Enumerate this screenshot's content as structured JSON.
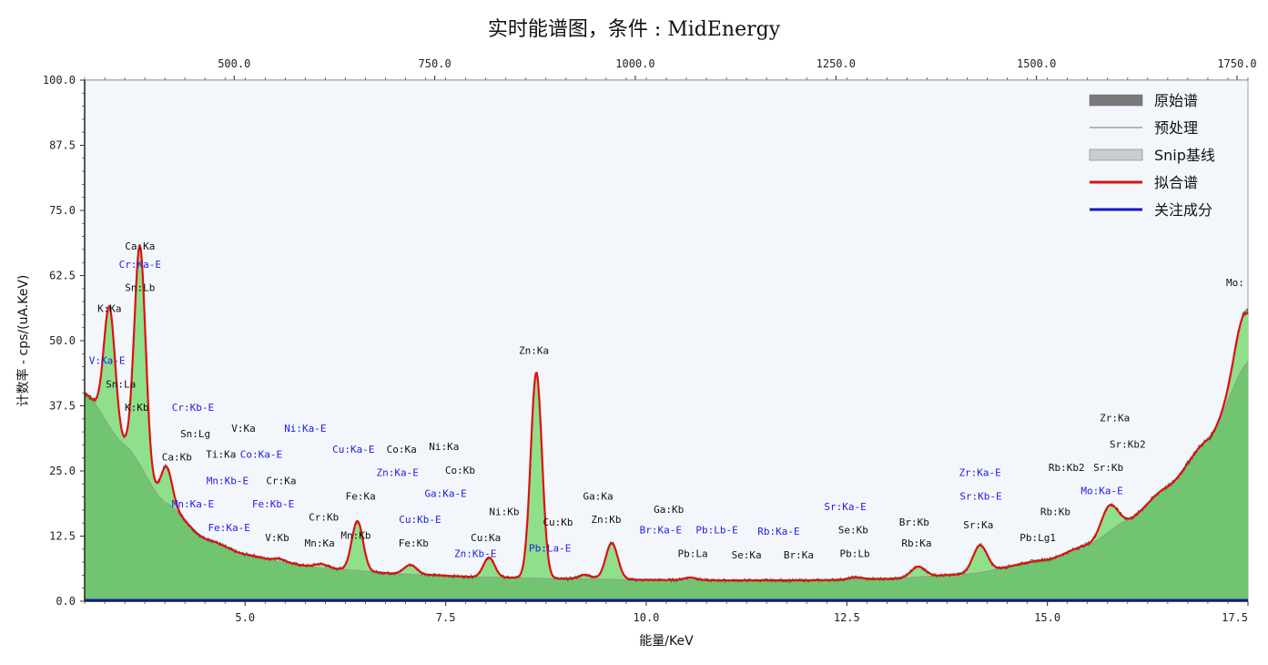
{
  "chart_data": {
    "type": "area",
    "title": "实时能谱图，条件 : MidEnergy",
    "xlabel": "能量/KeV",
    "ylabel": "计数率 - cps/(uA.KeV)",
    "xlim": [
      3.0,
      17.5
    ],
    "ylim": [
      0.0,
      100.0
    ],
    "x_ticks": [
      "5.0",
      "7.5",
      "10.0",
      "12.5",
      "15.0",
      "17.5"
    ],
    "x_tick_values": [
      5.0,
      7.5,
      10.0,
      12.5,
      15.0,
      17.5
    ],
    "y_ticks": [
      "0.0",
      "12.5",
      "25.0",
      "37.5",
      "50.0",
      "62.5",
      "75.0",
      "87.5",
      "100.0"
    ],
    "y_tick_values": [
      0,
      12.5,
      25,
      37.5,
      50,
      62.5,
      75,
      87.5,
      100
    ],
    "top_ticks": [
      "500.0",
      "750.0",
      "1000.0",
      "1250.0",
      "1500.0",
      "1750.0"
    ],
    "top_tick_values": [
      5.0,
      7.5,
      10.0,
      12.5,
      15.0,
      17.5
    ],
    "legend": [
      {
        "name": "原始谱",
        "color": "#7a7a7a",
        "style": "box"
      },
      {
        "name": "预处理",
        "color": "#9aa0a6",
        "style": "thin-line"
      },
      {
        "name": "Snip基线",
        "color": "#c9cdd2",
        "style": "box"
      },
      {
        "name": "拟合谱",
        "color": "#e01010",
        "style": "line"
      },
      {
        "name": "关注成分",
        "color": "#1414c8",
        "style": "line"
      }
    ],
    "background": {
      "x": [
        3.0,
        3.5,
        4.0,
        4.5,
        5.0,
        5.5,
        6.0,
        7.0,
        8.0,
        9.0,
        10.0,
        11.0,
        12.0,
        13.0,
        14.0,
        15.0,
        15.5,
        16.0,
        16.5,
        17.0,
        17.5
      ],
      "y": [
        40.0,
        30.0,
        19.0,
        12.0,
        9.0,
        7.3,
        6.3,
        5.2,
        4.6,
        4.3,
        4.1,
        4.0,
        4.0,
        4.3,
        5.2,
        8.0,
        10.8,
        15.5,
        22.0,
        31.0,
        46.0
      ]
    },
    "peaks": [
      {
        "center": 3.31,
        "height": 23.0,
        "width": 0.07
      },
      {
        "center": 3.69,
        "height": 42.0,
        "width": 0.07
      },
      {
        "center": 4.02,
        "height": 7.0,
        "width": 0.07
      },
      {
        "center": 5.43,
        "height": 0.7,
        "width": 0.08
      },
      {
        "center": 5.95,
        "height": 0.8,
        "width": 0.08
      },
      {
        "center": 6.4,
        "height": 9.5,
        "width": 0.07
      },
      {
        "center": 7.06,
        "height": 1.8,
        "width": 0.08
      },
      {
        "center": 8.04,
        "height": 3.8,
        "width": 0.07
      },
      {
        "center": 8.63,
        "height": 39.5,
        "width": 0.07
      },
      {
        "center": 9.24,
        "height": 0.8,
        "width": 0.08
      },
      {
        "center": 9.57,
        "height": 7.0,
        "width": 0.075
      },
      {
        "center": 10.55,
        "height": 0.5,
        "width": 0.08
      },
      {
        "center": 12.61,
        "height": 0.4,
        "width": 0.08
      },
      {
        "center": 13.39,
        "height": 2.0,
        "width": 0.09
      },
      {
        "center": 14.16,
        "height": 5.2,
        "width": 0.09
      },
      {
        "center": 15.77,
        "height": 5.0,
        "width": 0.1
      },
      {
        "center": 17.45,
        "height": 10.0,
        "width": 0.12
      }
    ],
    "annotations": [
      {
        "text": "Ca:Ka",
        "x": 3.69,
        "y": 67.5,
        "color": "black"
      },
      {
        "text": "Cr:Ka-E",
        "x": 3.69,
        "y": 64.0,
        "color": "blue"
      },
      {
        "text": "Sn:Lb",
        "x": 3.69,
        "y": 59.5,
        "color": "black"
      },
      {
        "text": "K:Ka",
        "x": 3.31,
        "y": 55.5,
        "color": "black"
      },
      {
        "text": "V:Ka-E",
        "x": 3.28,
        "y": 45.5,
        "color": "blue"
      },
      {
        "text": "Sn:La",
        "x": 3.45,
        "y": 41.0,
        "color": "black"
      },
      {
        "text": "K:Kb",
        "x": 3.65,
        "y": 36.5,
        "color": "black"
      },
      {
        "text": "Cr:Kb-E",
        "x": 4.35,
        "y": 36.5,
        "color": "blue"
      },
      {
        "text": "Ca:Kb",
        "x": 4.15,
        "y": 27.0,
        "color": "black"
      },
      {
        "text": "Sn:Lg",
        "x": 4.38,
        "y": 31.5,
        "color": "black"
      },
      {
        "text": "Ti:Ka",
        "x": 4.7,
        "y": 27.5,
        "color": "black"
      },
      {
        "text": "V:Ka",
        "x": 4.98,
        "y": 32.5,
        "color": "black"
      },
      {
        "text": "Ni:Ka-E",
        "x": 5.75,
        "y": 32.5,
        "color": "blue"
      },
      {
        "text": "Co:Ka-E",
        "x": 5.2,
        "y": 27.5,
        "color": "blue"
      },
      {
        "text": "Mn:Kb-E",
        "x": 4.78,
        "y": 22.5,
        "color": "blue"
      },
      {
        "text": "Cr:Ka",
        "x": 5.45,
        "y": 22.5,
        "color": "black"
      },
      {
        "text": "Mn:Ka-E",
        "x": 4.35,
        "y": 18.0,
        "color": "blue"
      },
      {
        "text": "Fe:Kb-E",
        "x": 5.35,
        "y": 18.0,
        "color": "blue"
      },
      {
        "text": "Fe:Ka-E",
        "x": 4.8,
        "y": 13.5,
        "color": "blue"
      },
      {
        "text": "Cu:Ka-E",
        "x": 6.35,
        "y": 28.5,
        "color": "blue"
      },
      {
        "text": "Co:Ka",
        "x": 6.95,
        "y": 28.5,
        "color": "black"
      },
      {
        "text": "Ni:Ka",
        "x": 7.48,
        "y": 29.0,
        "color": "black"
      },
      {
        "text": "Zn:Ka-E",
        "x": 6.9,
        "y": 24.0,
        "color": "blue"
      },
      {
        "text": "Co:Kb",
        "x": 7.68,
        "y": 24.5,
        "color": "black"
      },
      {
        "text": "Ga:Ka-E",
        "x": 7.5,
        "y": 20.0,
        "color": "blue"
      },
      {
        "text": "Fe:Ka",
        "x": 6.44,
        "y": 19.5,
        "color": "black"
      },
      {
        "text": "Cr:Kb",
        "x": 5.98,
        "y": 15.5,
        "color": "black"
      },
      {
        "text": "Cu:Kb-E",
        "x": 7.18,
        "y": 15.0,
        "color": "blue"
      },
      {
        "text": "Ni:Kb",
        "x": 8.23,
        "y": 16.5,
        "color": "black"
      },
      {
        "text": "V:Kb",
        "x": 5.4,
        "y": 11.5,
        "color": "black"
      },
      {
        "text": "Mn:Ka",
        "x": 5.93,
        "y": 10.5,
        "color": "black"
      },
      {
        "text": "Mn:Kb",
        "x": 6.38,
        "y": 12.0,
        "color": "black"
      },
      {
        "text": "Fe:Kb",
        "x": 7.1,
        "y": 10.5,
        "color": "black"
      },
      {
        "text": "Cu:Ka",
        "x": 8.0,
        "y": 11.5,
        "color": "black"
      },
      {
        "text": "Zn:Kb-E",
        "x": 7.87,
        "y": 8.5,
        "color": "blue"
      },
      {
        "text": "Pb:La-E",
        "x": 8.8,
        "y": 9.5,
        "color": "blue"
      },
      {
        "text": "Cu:Kb",
        "x": 8.9,
        "y": 14.5,
        "color": "black"
      },
      {
        "text": "Zn:Ka",
        "x": 8.6,
        "y": 47.5,
        "color": "black"
      },
      {
        "text": "Ga:Ka",
        "x": 9.4,
        "y": 19.5,
        "color": "black"
      },
      {
        "text": "Zn:Kb",
        "x": 9.5,
        "y": 15.0,
        "color": "black"
      },
      {
        "text": "Ga:Kb",
        "x": 10.28,
        "y": 17.0,
        "color": "black"
      },
      {
        "text": "Br:Ka-E",
        "x": 10.18,
        "y": 13.0,
        "color": "blue"
      },
      {
        "text": "Pb:Lb-E",
        "x": 10.88,
        "y": 13.0,
        "color": "blue"
      },
      {
        "text": "Rb:Ka-E",
        "x": 11.65,
        "y": 12.8,
        "color": "blue"
      },
      {
        "text": "Pb:La",
        "x": 10.58,
        "y": 8.5,
        "color": "black"
      },
      {
        "text": "Se:Ka",
        "x": 11.25,
        "y": 8.2,
        "color": "black"
      },
      {
        "text": "Br:Ka",
        "x": 11.9,
        "y": 8.2,
        "color": "black"
      },
      {
        "text": "Pb:Lb",
        "x": 12.6,
        "y": 8.5,
        "color": "black"
      },
      {
        "text": "Sr:Ka-E",
        "x": 12.48,
        "y": 17.5,
        "color": "blue"
      },
      {
        "text": "Se:Kb",
        "x": 12.58,
        "y": 13.0,
        "color": "black"
      },
      {
        "text": "Br:Kb",
        "x": 13.34,
        "y": 14.5,
        "color": "black"
      },
      {
        "text": "Rb:Ka",
        "x": 13.37,
        "y": 10.5,
        "color": "black"
      },
      {
        "text": "Zr:Ka-E",
        "x": 14.16,
        "y": 24.0,
        "color": "blue"
      },
      {
        "text": "Sr:Kb-E",
        "x": 14.17,
        "y": 19.5,
        "color": "blue"
      },
      {
        "text": "Sr:Ka",
        "x": 14.14,
        "y": 14.0,
        "color": "black"
      },
      {
        "text": "Pb:Lg1",
        "x": 14.88,
        "y": 11.5,
        "color": "black"
      },
      {
        "text": "Rb:Kb2",
        "x": 15.24,
        "y": 25.0,
        "color": "black"
      },
      {
        "text": "Rb:Kb",
        "x": 15.1,
        "y": 16.5,
        "color": "black"
      },
      {
        "text": "Sr:Kb",
        "x": 15.76,
        "y": 25.0,
        "color": "black"
      },
      {
        "text": "Mo:Ka-E",
        "x": 15.68,
        "y": 20.5,
        "color": "blue"
      },
      {
        "text": "Zr:Ka",
        "x": 15.84,
        "y": 34.5,
        "color": "black"
      },
      {
        "text": "Sr:Kb2",
        "x": 16.0,
        "y": 29.5,
        "color": "black"
      },
      {
        "text": "Mo:",
        "x": 17.34,
        "y": 60.5,
        "color": "black"
      }
    ]
  }
}
